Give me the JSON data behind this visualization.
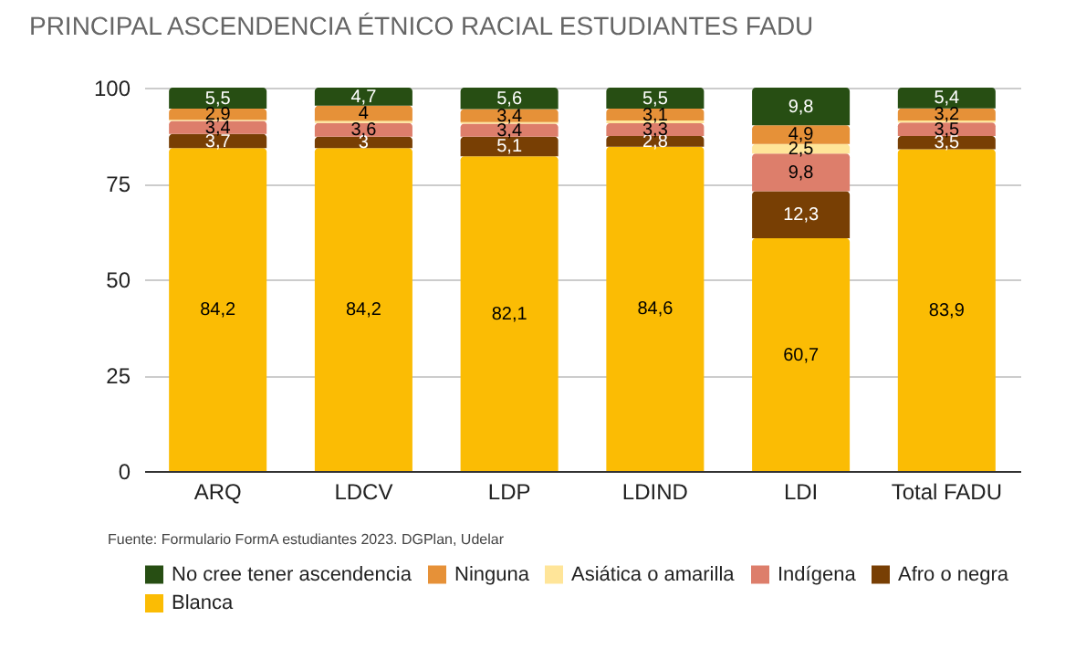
{
  "chart_data": {
    "type": "bar",
    "stacked": true,
    "title": "PRINCIPAL ASCENDENCIA ÉTNICO RACIAL ESTUDIANTES FADU",
    "categories": [
      "ARQ",
      "LDCV",
      "LDP",
      "LDIND",
      "LDI",
      "Total FADU"
    ],
    "series": [
      {
        "name": "Blanca",
        "color": "#fbbc04",
        "values": [
          84.2,
          84.2,
          82.1,
          84.6,
          60.7,
          83.9
        ],
        "value_labels": [
          "84,2",
          "84,2",
          "82,1",
          "84,6",
          "60,7",
          "83,9"
        ]
      },
      {
        "name": "Afro o negra",
        "color": "#783f04",
        "values": [
          3.7,
          3,
          5.1,
          2.8,
          12.3,
          3.5
        ],
        "value_labels": [
          "3,7",
          "3",
          "5,1",
          "2,8",
          "12,3",
          "3,5"
        ]
      },
      {
        "name": "Indígena",
        "color": "#dd7e6b",
        "values": [
          3.4,
          3.6,
          3.4,
          3.3,
          9.8,
          3.5
        ],
        "value_labels": [
          "3,4",
          "3,6",
          "3,4",
          "3,3",
          "9,8",
          "3,5"
        ]
      },
      {
        "name": "Asiática o amarilla",
        "color": "#ffe599",
        "values": [
          0.3,
          0.5,
          0.4,
          0.7,
          2.5,
          0.5
        ],
        "value_labels": [
          null,
          null,
          null,
          null,
          "2,5",
          null
        ]
      },
      {
        "name": "Ninguna",
        "color": "#e69138",
        "values": [
          2.9,
          4,
          3.4,
          3.1,
          4.9,
          3.2
        ],
        "value_labels": [
          "2,9",
          "4",
          "3,4",
          "3,1",
          "4,9",
          "3,2"
        ]
      },
      {
        "name": "No cree tener ascendencia",
        "color": "#274e13",
        "values": [
          5.5,
          4.7,
          5.6,
          5.5,
          9.8,
          5.4
        ],
        "value_labels": [
          "5,5",
          "4,7",
          "5,6",
          "5,5",
          "9,8",
          "5,4"
        ]
      }
    ],
    "ylim": [
      0,
      100
    ],
    "yticks": [
      0,
      25,
      50,
      75,
      100
    ],
    "grid": "y",
    "legend": "bottom",
    "annotations": [
      "Fuente: Formulario FormA estudiantes 2023. DGPlan, Udelar"
    ]
  }
}
